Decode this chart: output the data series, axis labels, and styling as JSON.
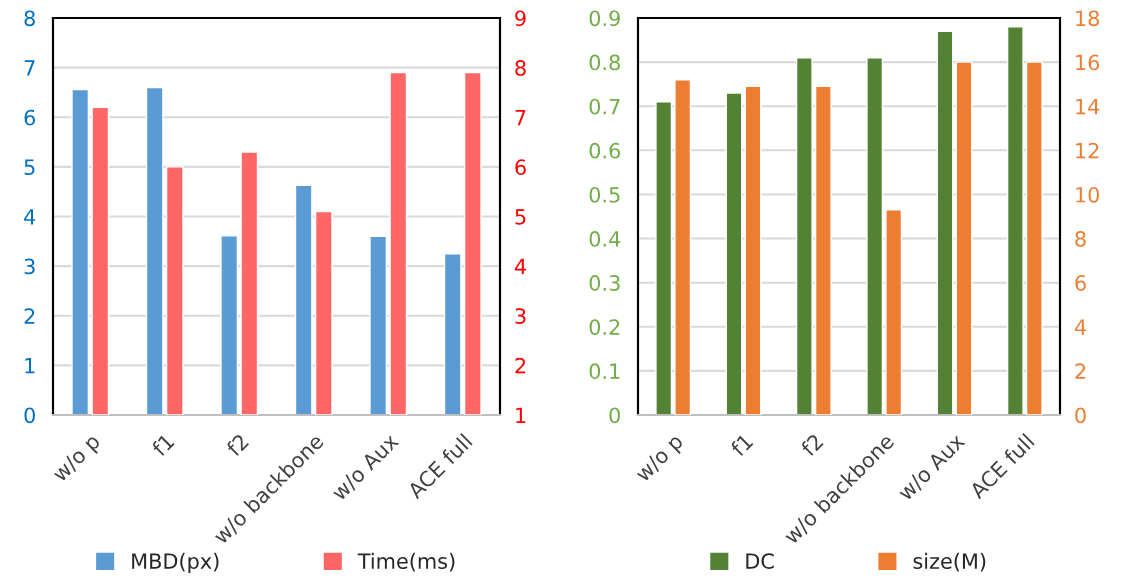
{
  "chart_data": [
    {
      "type": "bar",
      "categories": [
        "w/o p",
        "f1",
        "f2",
        "w/o backbone",
        "w/o Aux",
        "ACE full"
      ],
      "series": [
        {
          "name": "MBD(px)",
          "color": "#5b9bd5",
          "values": [
            6.56,
            6.6,
            3.61,
            4.63,
            3.6,
            3.25
          ]
        },
        {
          "name": "Time(ms)",
          "color": "#ff6666",
          "axis": "y2",
          "values": [
            7.2,
            6.0,
            6.3,
            5.1,
            7.9,
            7.9
          ]
        }
      ],
      "ylim": [
        0,
        8
      ],
      "yticks": [
        0,
        1,
        2,
        3,
        4,
        5,
        6,
        7,
        8
      ],
      "y2lim": [
        1,
        9
      ],
      "y2ticks": [
        1,
        2,
        3,
        4,
        5,
        6,
        7,
        8,
        9
      ],
      "grid": "y",
      "legend": "bottom"
    },
    {
      "type": "bar",
      "categories": [
        "w/o p",
        "f1",
        "f2",
        "w/o backbone",
        "w/o Aux",
        "ACE full"
      ],
      "series": [
        {
          "name": "DC",
          "color": "#548235",
          "values": [
            0.71,
            0.73,
            0.81,
            0.81,
            0.87,
            0.88
          ]
        },
        {
          "name": "size(M)",
          "color": "#ed7d31",
          "axis": "y2",
          "values": [
            15.2,
            14.9,
            14.9,
            9.3,
            16,
            16
          ]
        }
      ],
      "ylim": [
        0,
        0.9
      ],
      "yticks": [
        0,
        0.1,
        0.2,
        0.3,
        0.4,
        0.5,
        0.6,
        0.7,
        0.8,
        0.9
      ],
      "y2lim": [
        0,
        18
      ],
      "y2ticks": [
        0,
        2,
        4,
        6,
        8,
        10,
        12,
        14,
        16,
        18
      ],
      "grid": "y",
      "legend": "bottom"
    }
  ]
}
